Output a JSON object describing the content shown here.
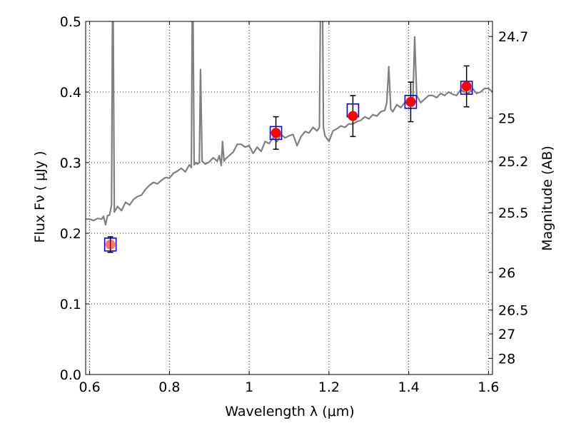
{
  "chart_data": {
    "type": "line",
    "title": "",
    "xlabel": "Wavelength  λ (μm)",
    "ylabel": "Flux  Fν  ( μJy )",
    "ylabel_right": "Magnitude (AB)",
    "xlim": [
      0.59,
      1.61
    ],
    "ylim": [
      0.0,
      0.5
    ],
    "grid": true,
    "x_ticks": [
      0.6,
      0.8,
      1.0,
      1.2,
      1.4,
      1.6
    ],
    "x_tick_labels": [
      "0.6",
      "0.8",
      "1",
      "1.2",
      "1.4",
      "1.6"
    ],
    "y_ticks": [
      0.0,
      0.1,
      0.2,
      0.3,
      0.4,
      0.5
    ],
    "y_tick_labels": [
      "0.0",
      "0.1",
      "0.2",
      "0.3",
      "0.4",
      "0.5"
    ],
    "mag_ticks": [
      24.7,
      25,
      25.2,
      25.5,
      26,
      26.5,
      27,
      28
    ],
    "mag_tick_labels": [
      "24.7",
      "25",
      "25.2",
      "25.5",
      "26",
      "26.5",
      "27",
      "28"
    ],
    "series": [
      {
        "color": "#808080",
        "kind": "spectrum",
        "x": [
          0.59,
          0.6,
          0.61,
          0.62,
          0.63,
          0.635,
          0.64,
          0.645,
          0.65,
          0.655,
          0.658,
          0.662,
          0.67,
          0.68,
          0.69,
          0.7,
          0.71,
          0.72,
          0.73,
          0.74,
          0.75,
          0.76,
          0.77,
          0.78,
          0.79,
          0.8,
          0.81,
          0.82,
          0.83,
          0.84,
          0.85,
          0.855,
          0.858,
          0.862,
          0.866,
          0.87,
          0.875,
          0.878,
          0.882,
          0.886,
          0.89,
          0.9,
          0.91,
          0.92,
          0.925,
          0.93,
          0.933,
          0.937,
          0.94,
          0.95,
          0.96,
          0.97,
          0.98,
          0.99,
          1.0,
          1.01,
          1.02,
          1.03,
          1.04,
          1.05,
          1.06,
          1.07,
          1.08,
          1.09,
          1.1,
          1.11,
          1.12,
          1.13,
          1.14,
          1.15,
          1.16,
          1.17,
          1.176,
          1.18,
          1.183,
          1.186,
          1.19,
          1.2,
          1.21,
          1.22,
          1.23,
          1.24,
          1.25,
          1.26,
          1.27,
          1.28,
          1.29,
          1.3,
          1.31,
          1.32,
          1.33,
          1.34,
          1.345,
          1.35,
          1.355,
          1.36,
          1.37,
          1.38,
          1.39,
          1.4,
          1.405,
          1.41,
          1.415,
          1.42,
          1.43,
          1.44,
          1.45,
          1.46,
          1.47,
          1.48,
          1.49,
          1.5,
          1.51,
          1.52,
          1.53,
          1.54,
          1.55,
          1.56,
          1.57,
          1.58,
          1.59,
          1.6,
          1.61
        ],
        "y": [
          0.22,
          0.22,
          0.218,
          0.221,
          0.22,
          0.224,
          0.212,
          0.225,
          0.226,
          0.24,
          0.6,
          0.23,
          0.238,
          0.232,
          0.244,
          0.24,
          0.248,
          0.252,
          0.254,
          0.262,
          0.268,
          0.272,
          0.27,
          0.275,
          0.279,
          0.278,
          0.285,
          0.288,
          0.292,
          0.287,
          0.297,
          0.293,
          0.6,
          0.297,
          0.3,
          0.298,
          0.3,
          0.432,
          0.302,
          0.3,
          0.298,
          0.301,
          0.307,
          0.302,
          0.31,
          0.296,
          0.33,
          0.302,
          0.305,
          0.31,
          0.315,
          0.326,
          0.326,
          0.322,
          0.324,
          0.313,
          0.322,
          0.316,
          0.33,
          0.327,
          0.335,
          0.33,
          0.34,
          0.335,
          0.338,
          0.34,
          0.324,
          0.337,
          0.344,
          0.342,
          0.35,
          0.345,
          0.35,
          0.6,
          0.6,
          0.35,
          0.338,
          0.33,
          0.345,
          0.348,
          0.352,
          0.35,
          0.355,
          0.355,
          0.358,
          0.36,
          0.365,
          0.362,
          0.368,
          0.366,
          0.372,
          0.374,
          0.385,
          0.436,
          0.376,
          0.372,
          0.382,
          0.378,
          0.385,
          0.385,
          0.39,
          0.38,
          0.478,
          0.395,
          0.385,
          0.39,
          0.395,
          0.395,
          0.392,
          0.398,
          0.395,
          0.4,
          0.397,
          0.395,
          0.403,
          0.4,
          0.398,
          0.405,
          0.398,
          0.4,
          0.405,
          0.405,
          0.4
        ]
      }
    ],
    "model_points": {
      "marker": "open-square",
      "color": "#0000ff",
      "x": [
        0.652,
        1.067,
        1.26,
        1.405,
        1.545
      ],
      "y": [
        0.184,
        0.342,
        0.374,
        0.386,
        0.406
      ]
    },
    "observed_points": {
      "marker": "circle",
      "color": "#ff0000",
      "x": [
        0.652,
        1.067,
        1.26,
        1.405,
        1.545
      ],
      "y": [
        0.184,
        0.342,
        0.366,
        0.386,
        0.408
      ],
      "yerr": [
        0.011,
        0.023,
        0.029,
        0.028,
        0.029
      ]
    }
  }
}
